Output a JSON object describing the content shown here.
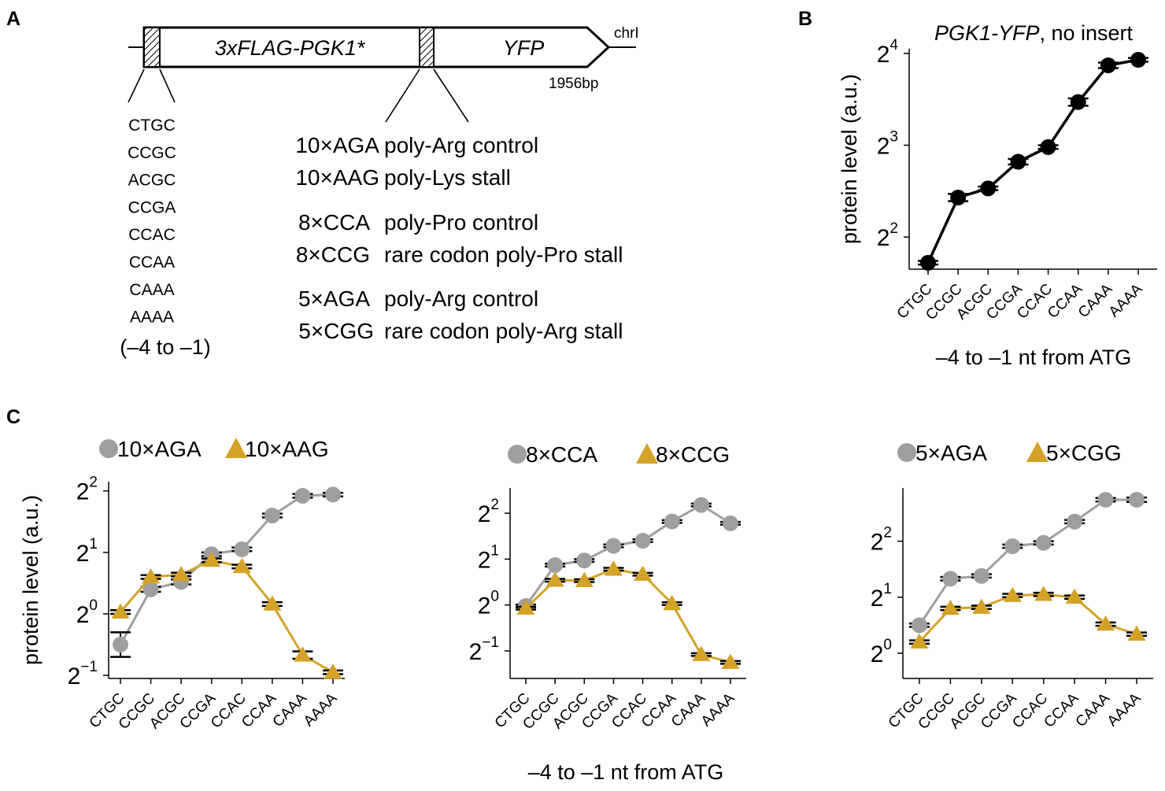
{
  "panels": {
    "a": "A",
    "b": "B",
    "c": "C"
  },
  "construct": {
    "gene_label": "3xFLAG-PGK1*",
    "reporter_label": "YFP",
    "chromosome_label": "chrI",
    "length_label": "1956bp",
    "contexts": [
      "CTGC",
      "CCGC",
      "ACGC",
      "CCGA",
      "CCAC",
      "CCAA",
      "CAAA",
      "AAAA"
    ],
    "context_range_label": "(–4 to –1)",
    "inserts": [
      {
        "name": "10×AGA",
        "desc": "poly-Arg control"
      },
      {
        "name": "10×AAG",
        "desc": "poly-Lys stall"
      },
      {
        "name": "8×CCA",
        "desc": "poly-Pro control"
      },
      {
        "name": "8×CCG",
        "desc": "rare codon poly-Pro stall"
      },
      {
        "name": "5×AGA",
        "desc": "poly-Arg control"
      },
      {
        "name": "5×CGG",
        "desc": "rare codon poly-Arg stall"
      }
    ]
  },
  "colors": {
    "line_black": "#000000",
    "control_gray": "#9e9e9e",
    "stall_gold": "#d4a228"
  },
  "chart_data": [
    {
      "id": "B",
      "type": "line",
      "title_italic": "PGK1-YFP",
      "title_rest": ", no insert",
      "xlabel": "–4 to –1 nt from ATG",
      "ylabel": "protein level (a.u.)",
      "log_base": 2,
      "ylim_log2": [
        1.65,
        4.05
      ],
      "yticks_log2": [
        2,
        3,
        4
      ],
      "categories": [
        "CTGC",
        "CCGC",
        "ACGC",
        "CCGA",
        "CCAC",
        "CCAA",
        "CAAA",
        "AAAA"
      ],
      "series": [
        {
          "values_log2": [
            1.72,
            2.43,
            2.53,
            2.82,
            2.98,
            3.47,
            3.87,
            3.93
          ],
          "err_log2": [
            0.02,
            0.04,
            0.02,
            0.03,
            0.02,
            0.04,
            0.03,
            0.02
          ]
        }
      ]
    },
    {
      "id": "C1",
      "type": "line",
      "legend": [
        "10×AGA",
        "10×AAG"
      ],
      "xlabel": "",
      "ylabel": "protein level (a.u.)",
      "log_base": 2,
      "ylim_log2": [
        -1.05,
        2.15
      ],
      "yticks_log2": [
        -1,
        0,
        1,
        2
      ],
      "categories": [
        "CTGC",
        "CCGC",
        "ACGC",
        "CCGA",
        "CCAC",
        "CCAA",
        "CAAA",
        "AAAA"
      ],
      "series": [
        {
          "name": "10×AGA",
          "values_log2": [
            -0.5,
            0.4,
            0.52,
            0.97,
            1.05,
            1.6,
            1.92,
            1.94
          ],
          "err_log2": [
            0.2,
            0.04,
            0.04,
            0.03,
            0.03,
            0.03,
            0.03,
            0.03
          ]
        },
        {
          "name": "10×AAG",
          "values_log2": [
            0.03,
            0.6,
            0.64,
            0.87,
            0.77,
            0.16,
            -0.67,
            -0.95
          ],
          "err_log2": [
            0.03,
            0.03,
            0.03,
            0.03,
            0.03,
            0.03,
            0.06,
            0.03
          ]
        }
      ]
    },
    {
      "id": "C2",
      "type": "line",
      "legend": [
        "8×CCA",
        "8×CCG"
      ],
      "xlabel": "–4 to –1 nt from ATG",
      "ylabel": "",
      "log_base": 2,
      "ylim_log2": [
        -1.6,
        2.55
      ],
      "yticks_log2": [
        -1,
        0,
        1,
        2
      ],
      "categories": [
        "CTGC",
        "CCGC",
        "ACGC",
        "CCGA",
        "CCAC",
        "CCAA",
        "CAAA",
        "AAAA"
      ],
      "series": [
        {
          "name": "8×CCA",
          "values_log2": [
            -0.02,
            0.87,
            0.97,
            1.29,
            1.4,
            1.82,
            2.18,
            1.78
          ],
          "err_log2": [
            0.03,
            0.03,
            0.03,
            0.03,
            0.03,
            0.03,
            0.03,
            0.03
          ]
        },
        {
          "name": "8×CCG",
          "values_log2": [
            -0.07,
            0.54,
            0.53,
            0.78,
            0.67,
            0.03,
            -1.08,
            -1.25
          ],
          "err_log2": [
            0.03,
            0.03,
            0.03,
            0.03,
            0.03,
            0.03,
            0.03,
            0.03
          ]
        }
      ]
    },
    {
      "id": "C3",
      "type": "line",
      "legend": [
        "5×AGA",
        "5×CGG"
      ],
      "xlabel": "",
      "ylabel": "",
      "log_base": 2,
      "ylim_log2": [
        -0.45,
        2.95
      ],
      "yticks_log2": [
        0,
        1,
        2
      ],
      "categories": [
        "CTGC",
        "CCGC",
        "ACGC",
        "CCGA",
        "CCAC",
        "CCAA",
        "CAAA",
        "AAAA"
      ],
      "series": [
        {
          "name": "5×AGA",
          "values_log2": [
            0.5,
            1.33,
            1.38,
            1.91,
            1.97,
            2.35,
            2.74,
            2.74
          ],
          "err_log2": [
            0.03,
            0.03,
            0.03,
            0.03,
            0.03,
            0.03,
            0.03,
            0.04
          ]
        },
        {
          "name": "5×CGG",
          "values_log2": [
            0.2,
            0.8,
            0.82,
            1.03,
            1.05,
            1.0,
            0.52,
            0.34
          ],
          "err_log2": [
            0.03,
            0.03,
            0.03,
            0.03,
            0.03,
            0.03,
            0.03,
            0.03
          ]
        }
      ]
    }
  ]
}
